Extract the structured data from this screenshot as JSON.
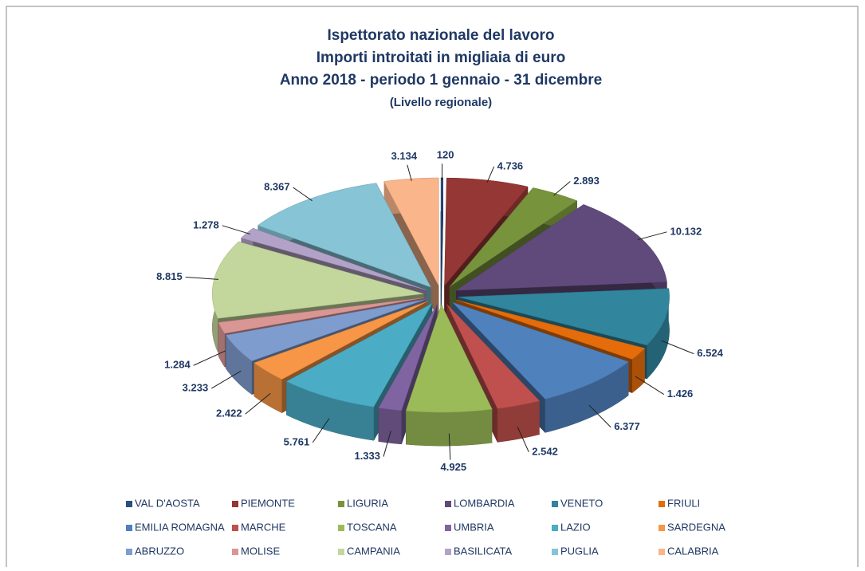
{
  "chart_data": {
    "type": "pie",
    "title_lines": [
      "Ispettorato nazionale del lavoro",
      "Importi introitati in migliaia di euro",
      "Anno 2018 - periodo 1 gennaio - 31 dicembre",
      "(Livello regionale)"
    ],
    "categories": [
      "VAL D'AOSTA",
      "PIEMONTE",
      "LIGURIA",
      "LOMBARDIA",
      "VENETO",
      "FRIULI",
      "EMILIA ROMAGNA",
      "MARCHE",
      "TOSCANA",
      "UMBRIA",
      "LAZIO",
      "SARDEGNA",
      "ABRUZZO",
      "MOLISE",
      "CAMPANIA",
      "BASILICATA",
      "PUGLIA",
      "CALABRIA"
    ],
    "values": [
      120,
      4736,
      2893,
      10132,
      6524,
      1426,
      6377,
      2542,
      4925,
      1333,
      5761,
      2422,
      3233,
      1284,
      8815,
      1278,
      8367,
      3134
    ],
    "value_labels": [
      "120",
      "4.736",
      "2.893",
      "10.132",
      "6.524",
      "1.426",
      "6.377",
      "2.542",
      "4.925",
      "1.333",
      "5.761",
      "2.422",
      "3.233",
      "1.284",
      "8.815",
      "1.278",
      "8.367",
      "3.134"
    ],
    "colors": [
      "#2a4f80",
      "#953735",
      "#77933c",
      "#604a7b",
      "#31859c",
      "#e46c0a",
      "#4f81bd",
      "#c0504d",
      "#9bbb59",
      "#8064a2",
      "#4bacc6",
      "#f79646",
      "#7f9ccf",
      "#d99694",
      "#c3d69b",
      "#b3a2c7",
      "#86c4d6",
      "#fab58a"
    ],
    "legend": "bottom"
  }
}
